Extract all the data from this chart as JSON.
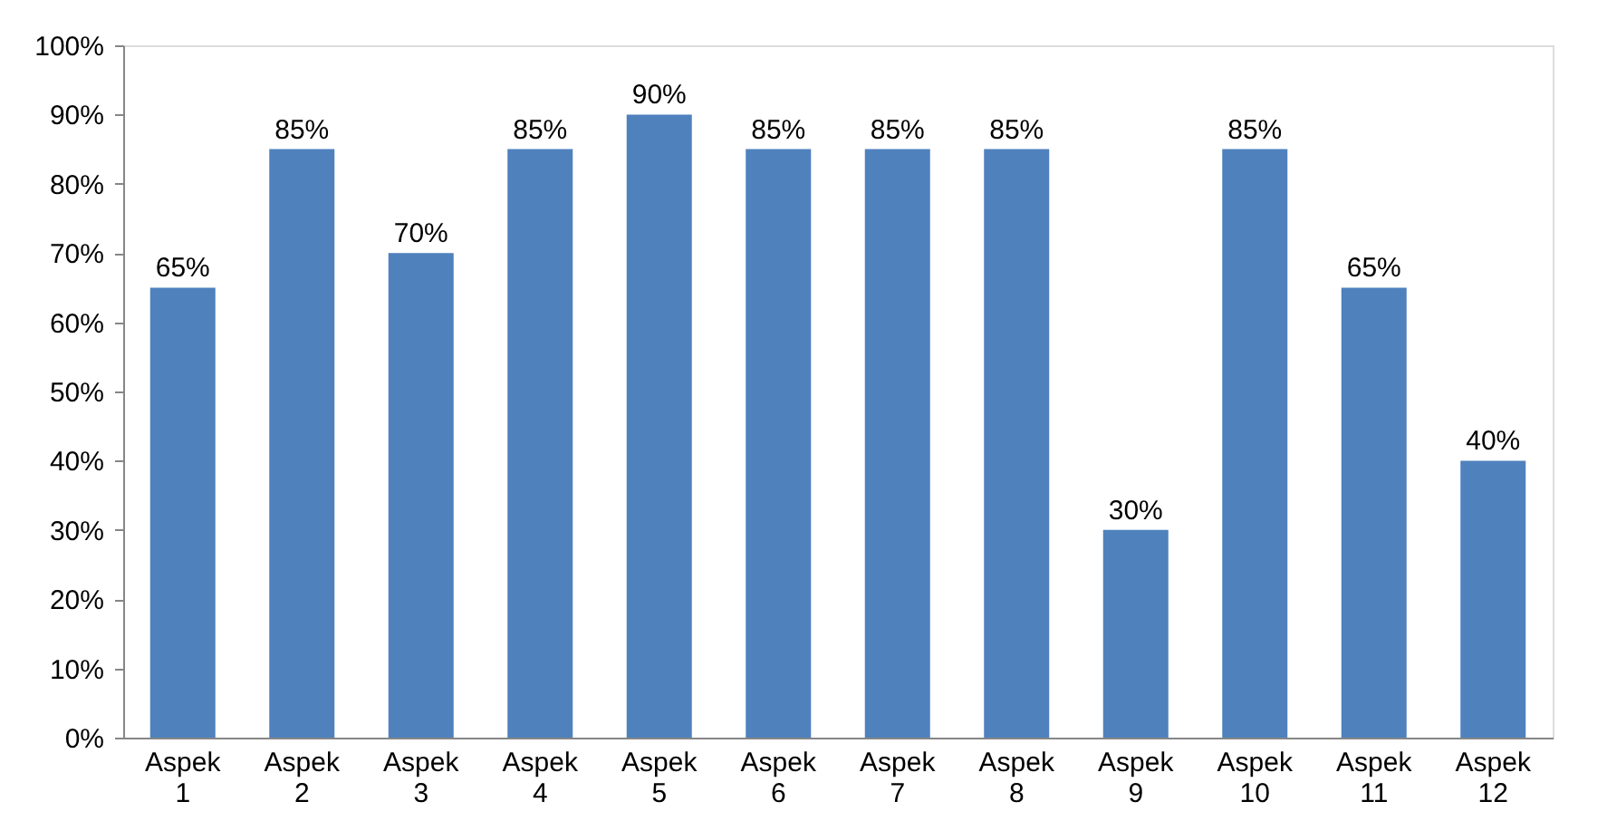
{
  "chart_data": {
    "type": "bar",
    "categories": [
      "Aspek 1",
      "Aspek 2",
      "Aspek 3",
      "Aspek 4",
      "Aspek 5",
      "Aspek 6",
      "Aspek 7",
      "Aspek 8",
      "Aspek 9",
      "Aspek 10",
      "Aspek 11",
      "Aspek 12"
    ],
    "values": [
      65,
      85,
      70,
      85,
      90,
      85,
      85,
      85,
      30,
      85,
      65,
      40
    ],
    "value_labels": [
      "65%",
      "85%",
      "70%",
      "85%",
      "90%",
      "85%",
      "85%",
      "85%",
      "30%",
      "85%",
      "65%",
      "40%"
    ],
    "color": "#4f81bd",
    "ylim": [
      0,
      100
    ],
    "yticks": [
      {
        "value": 0,
        "label": "0%"
      },
      {
        "value": 10,
        "label": "10%"
      },
      {
        "value": 20,
        "label": "20%"
      },
      {
        "value": 30,
        "label": "30%"
      },
      {
        "value": 40,
        "label": "40%"
      },
      {
        "value": 50,
        "label": "50%"
      },
      {
        "value": 60,
        "label": "60%"
      },
      {
        "value": 70,
        "label": "70%"
      },
      {
        "value": 80,
        "label": "80%"
      },
      {
        "value": 90,
        "label": "90%"
      },
      {
        "value": 100,
        "label": "100%"
      }
    ],
    "grid": false
  }
}
